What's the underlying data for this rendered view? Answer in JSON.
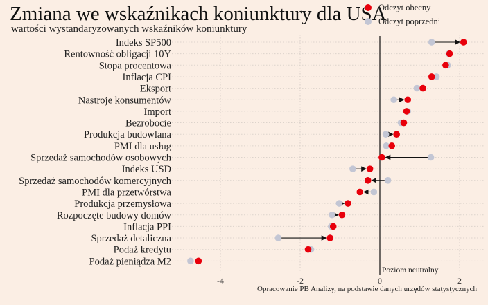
{
  "chart_data": {
    "type": "dot",
    "title": "Zmiana we wskaźnikach koniunktury dla USA",
    "subtitle": "wartości wystandaryzowanych wskaźników koniunktury",
    "xlim": [
      -5,
      2.55
    ],
    "x_ticks": [
      -4,
      -2,
      0,
      2
    ],
    "grid": true,
    "legend_position": "top-right",
    "series": [
      {
        "name": "Odczyt obecny",
        "color": "#e8000b"
      },
      {
        "name": "Odczyt poprzedni",
        "color": "#c3c6d4"
      }
    ],
    "zero_line_label": "Poziom neutralny",
    "source": "Opracowanie PB Analizy, na podstawie danych urzędów statystycznych",
    "categories": [
      {
        "label": "Indeks SP500",
        "current": 2.1,
        "previous": 1.3
      },
      {
        "label": "Rentowność obligacji 10Y",
        "current": 1.75,
        "previous": 1.73
      },
      {
        "label": "Stopa procentowa",
        "current": 1.65,
        "previous": 1.7
      },
      {
        "label": "Inflacja CPI",
        "current": 1.3,
        "previous": 1.42
      },
      {
        "label": "Eksport",
        "current": 1.08,
        "previous": 0.93
      },
      {
        "label": "Nastroje konsumentów",
        "current": 0.7,
        "previous": 0.35
      },
      {
        "label": "Import",
        "current": 0.67,
        "previous": 0.7
      },
      {
        "label": "Bezrobocie",
        "current": 0.6,
        "previous": 0.53
      },
      {
        "label": "Produkcja budowlana",
        "current": 0.42,
        "previous": 0.15
      },
      {
        "label": "PMI dla usług",
        "current": 0.3,
        "previous": 0.16
      },
      {
        "label": "Sprzedaż samochodów osobowych",
        "current": 0.05,
        "previous": 1.28
      },
      {
        "label": "Indeks USD",
        "current": -0.25,
        "previous": -0.68
      },
      {
        "label": "Sprzedaż samochodów komercyjnych",
        "current": -0.3,
        "previous": 0.2
      },
      {
        "label": "PMI dla przetwórstwa",
        "current": -0.5,
        "previous": -0.15
      },
      {
        "label": "Produkcja przemysłowa",
        "current": -0.8,
        "previous": -1.02
      },
      {
        "label": "Rozpoczęte budowy domów",
        "current": -0.95,
        "previous": -1.2
      },
      {
        "label": "Inflacja PPI",
        "current": -1.17,
        "previous": -1.22
      },
      {
        "label": "Sprzedaż detaliczna",
        "current": -1.25,
        "previous": -2.55
      },
      {
        "label": "Podaż kredytu",
        "current": -1.8,
        "previous": -1.73
      },
      {
        "label": "Podaż pieniądza M2",
        "current": -4.55,
        "previous": -4.75
      }
    ]
  }
}
